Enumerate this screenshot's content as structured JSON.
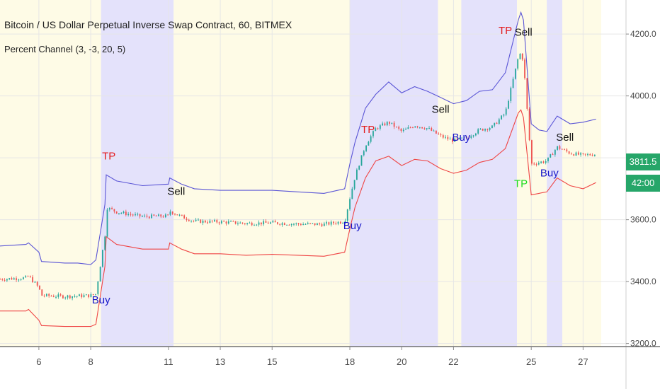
{
  "header": {
    "title": "Bitcoin / US Dollar Perpetual Inverse Swap Contract, 60, BITMEX",
    "indicator": "Percent Channel (3, -3, 20, 5)"
  },
  "price_tag": "3811.5",
  "time_tag": "42:00",
  "colors": {
    "upper_band": "#5a55d6",
    "lower_band": "#ef4545",
    "candle_up": "#26a69a",
    "candle_down": "#ef5350",
    "long_zone": "#e4e2fb",
    "short_zone": "#fefbe6",
    "buy_label": "#1717c9",
    "sell_label": "#111111",
    "tp_red": "#e31b1b",
    "tp_green": "#1fdc1f",
    "price_tag_bg": "#26a669"
  },
  "chart_data": {
    "type": "line",
    "y_axis": {
      "ticks": [
        3200,
        3400,
        3600,
        3800,
        4000,
        4200
      ],
      "min": 3190,
      "max": 4310,
      "position": "right"
    },
    "x_axis": {
      "ticks": [
        "6",
        "8",
        "11",
        "13",
        "15",
        "18",
        "20",
        "22",
        "25",
        "27"
      ],
      "start": 4.5,
      "end": 27.7
    },
    "grid": true,
    "series": [
      {
        "name": "upper_band",
        "x": [
          4.5,
          5.5,
          5.6,
          6.0,
          6.1,
          7.0,
          7.5,
          8.0,
          8.2,
          8.55,
          8.6,
          9.0,
          10.0,
          11.0,
          11.05,
          11.5,
          12.0,
          13.0,
          14.0,
          15.0,
          16.0,
          17.0,
          17.8,
          18.0,
          18.2,
          18.6,
          19.0,
          19.5,
          20.0,
          20.5,
          21.0,
          21.5,
          22.0,
          22.5,
          23.0,
          23.5,
          24.0,
          24.5,
          24.6,
          24.7,
          25.0,
          25.3,
          25.6,
          26.0,
          26.5,
          27.0,
          27.5
        ],
        "y": [
          3515,
          3520,
          3525,
          3495,
          3465,
          3460,
          3460,
          3455,
          3470,
          3650,
          3745,
          3725,
          3710,
          3715,
          3735,
          3715,
          3700,
          3695,
          3695,
          3695,
          3690,
          3685,
          3700,
          3780,
          3850,
          3960,
          4005,
          4045,
          4010,
          4030,
          4015,
          3995,
          3975,
          3985,
          4015,
          4020,
          4075,
          4245,
          4270,
          4245,
          3910,
          3890,
          3885,
          3935,
          3910,
          3915,
          3925
        ]
      },
      {
        "name": "price",
        "x": [
          4.5,
          5.5,
          5.6,
          6.0,
          6.1,
          7.0,
          8.0,
          8.2,
          8.55,
          8.6,
          9.0,
          10.0,
          11.0,
          11.05,
          11.5,
          12.0,
          13.0,
          14.0,
          15.0,
          16.0,
          17.0,
          17.8,
          18.0,
          18.2,
          18.6,
          19.0,
          19.5,
          20.0,
          20.5,
          21.0,
          21.5,
          22.0,
          22.5,
          23.0,
          23.5,
          24.0,
          24.5,
          24.6,
          24.7,
          25.0,
          25.3,
          25.6,
          26.0,
          26.5,
          27.0,
          27.5
        ],
        "y": [
          3408,
          3412,
          3418,
          3380,
          3355,
          3352,
          3355,
          3360,
          3550,
          3640,
          3625,
          3610,
          3612,
          3628,
          3610,
          3595,
          3593,
          3588,
          3590,
          3586,
          3585,
          3595,
          3670,
          3740,
          3840,
          3895,
          3915,
          3885,
          3905,
          3895,
          3870,
          3855,
          3865,
          3890,
          3900,
          3945,
          4125,
          4140,
          4110,
          3780,
          3785,
          3790,
          3835,
          3815,
          3808,
          3812
        ]
      },
      {
        "name": "lower_band",
        "x": [
          4.5,
          5.5,
          5.6,
          6.0,
          6.1,
          7.0,
          8.0,
          8.2,
          8.55,
          8.6,
          9.0,
          10.0,
          11.0,
          11.05,
          11.5,
          12.0,
          13.0,
          14.0,
          15.0,
          16.0,
          17.0,
          17.8,
          18.0,
          18.2,
          18.6,
          19.0,
          19.5,
          20.0,
          20.5,
          21.0,
          21.5,
          22.0,
          22.5,
          23.0,
          23.5,
          24.0,
          24.5,
          24.6,
          24.7,
          25.0,
          25.3,
          25.6,
          26.0,
          26.5,
          27.0,
          27.5
        ],
        "y": [
          3305,
          3305,
          3310,
          3275,
          3258,
          3255,
          3255,
          3262,
          3450,
          3545,
          3520,
          3505,
          3505,
          3525,
          3505,
          3490,
          3490,
          3485,
          3488,
          3485,
          3482,
          3495,
          3570,
          3640,
          3735,
          3790,
          3805,
          3775,
          3795,
          3790,
          3765,
          3750,
          3760,
          3785,
          3795,
          3830,
          3945,
          3955,
          3930,
          3680,
          3685,
          3690,
          3735,
          3710,
          3700,
          3720
        ]
      }
    ],
    "zones": [
      {
        "type": "short",
        "x0": 4.5,
        "x1": 8.4
      },
      {
        "type": "long",
        "x0": 8.4,
        "x1": 11.2
      },
      {
        "type": "short",
        "x0": 11.2,
        "x1": 18.0
      },
      {
        "type": "long",
        "x0": 18.0,
        "x1": 21.4
      },
      {
        "type": "short",
        "x0": 21.4,
        "x1": 22.3
      },
      {
        "type": "long",
        "x0": 22.3,
        "x1": 24.45
      },
      {
        "type": "short",
        "x0": 24.45,
        "x1": 25.6
      },
      {
        "type": "long",
        "x0": 25.6,
        "x1": 26.2
      },
      {
        "type": "short",
        "x0": 26.2,
        "x1": 27.7
      }
    ],
    "signals": [
      {
        "label": "Buy",
        "x": 8.4,
        "y": 3330,
        "color": "buy_label"
      },
      {
        "label": "TP",
        "x": 8.7,
        "y": 3795,
        "color": "tp_red"
      },
      {
        "label": "Sell",
        "x": 11.3,
        "y": 3680,
        "color": "sell_label"
      },
      {
        "label": "Buy",
        "x": 18.1,
        "y": 3570,
        "color": "buy_label"
      },
      {
        "label": "TP",
        "x": 18.7,
        "y": 3880,
        "color": "tp_red"
      },
      {
        "label": "Sell",
        "x": 21.5,
        "y": 3945,
        "color": "sell_label"
      },
      {
        "label": "Buy",
        "x": 22.3,
        "y": 3855,
        "color": "buy_label"
      },
      {
        "label": "TP",
        "x": 24.0,
        "y": 4200,
        "color": "tp_red"
      },
      {
        "label": "Sell",
        "x": 24.7,
        "y": 4195,
        "color": "sell_label"
      },
      {
        "label": "TP",
        "x": 24.6,
        "y": 3705,
        "color": "tp_green"
      },
      {
        "label": "Buy",
        "x": 25.7,
        "y": 3740,
        "color": "buy_label"
      },
      {
        "label": "Sell",
        "x": 26.3,
        "y": 3855,
        "color": "sell_label"
      }
    ]
  }
}
